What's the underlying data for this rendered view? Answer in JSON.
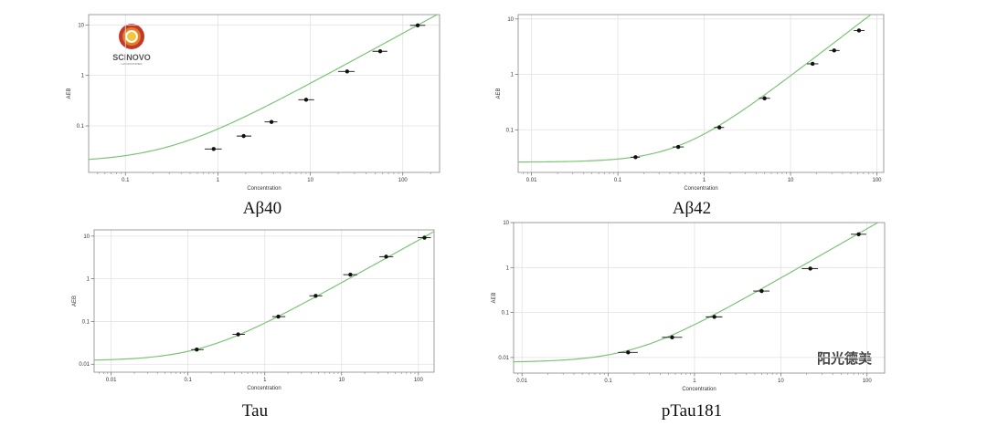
{
  "logo": {
    "text": "SCINOVO",
    "subtext": "LABORATORIES"
  },
  "watermark": "阳光德美",
  "chart_data": [
    {
      "type": "scatter",
      "caption": "Aβ40",
      "xlabel": "Concentration",
      "ylabel": "AEB",
      "xscale": "log",
      "yscale": "log",
      "xlim": [
        0.04,
        250
      ],
      "ylim": [
        0.012,
        16
      ],
      "xticks": [
        {
          "v": 0.1,
          "label": "0.1"
        },
        {
          "v": 1,
          "label": "1"
        },
        {
          "v": 10,
          "label": "10"
        },
        {
          "v": 100,
          "label": "100"
        }
      ],
      "yticks": [
        {
          "v": 0.1,
          "label": "0.1"
        },
        {
          "v": 1,
          "label": "1"
        },
        {
          "v": 10,
          "label": "10"
        }
      ],
      "grid": true,
      "curve_color": "#7cc576",
      "fit": {
        "bg": 0.019,
        "slope": 0.068,
        "power": 1.0
      },
      "points": [
        {
          "x": 0.9,
          "y": 0.035,
          "xerr": [
            0.72,
            1.1
          ]
        },
        {
          "x": 1.9,
          "y": 0.063,
          "xerr": [
            1.6,
            2.3
          ]
        },
        {
          "x": 3.8,
          "y": 0.12,
          "xerr": [
            3.2,
            4.4
          ]
        },
        {
          "x": 9,
          "y": 0.33,
          "xerr": [
            7.4,
            11
          ]
        },
        {
          "x": 25,
          "y": 1.2,
          "xerr": [
            20,
            30
          ]
        },
        {
          "x": 57,
          "y": 3.0,
          "xerr": [
            47,
            68
          ]
        },
        {
          "x": 145,
          "y": 9.8,
          "xerr": [
            120,
            175
          ]
        }
      ]
    },
    {
      "type": "scatter",
      "caption": "Aβ42",
      "xlabel": "Concentration",
      "ylabel": "AEB",
      "xscale": "log",
      "yscale": "log",
      "xlim": [
        0.007,
        120
      ],
      "ylim": [
        0.017,
        12
      ],
      "xticks": [
        {
          "v": 0.01,
          "label": "0.01"
        },
        {
          "v": 0.1,
          "label": "0.1"
        },
        {
          "v": 1,
          "label": "1"
        },
        {
          "v": 10,
          "label": "10"
        },
        {
          "v": 100,
          "label": "100"
        }
      ],
      "yticks": [
        {
          "v": 0.1,
          "label": "0.1"
        },
        {
          "v": 1,
          "label": "1"
        },
        {
          "v": 10,
          "label": "10"
        }
      ],
      "grid": true,
      "curve_color": "#7cc576",
      "fit": {
        "bg": 0.026,
        "slope": 0.058,
        "power": 1.2
      },
      "points": [
        {
          "x": 0.16,
          "y": 0.032,
          "xerr": [
            0.14,
            0.18
          ]
        },
        {
          "x": 0.5,
          "y": 0.049,
          "xerr": [
            0.43,
            0.58
          ]
        },
        {
          "x": 1.5,
          "y": 0.11,
          "xerr": [
            1.3,
            1.7
          ]
        },
        {
          "x": 5,
          "y": 0.37,
          "xerr": [
            4.3,
            5.8
          ]
        },
        {
          "x": 18,
          "y": 1.55,
          "xerr": [
            15.5,
            21
          ]
        },
        {
          "x": 32,
          "y": 2.7,
          "xerr": [
            28,
            37
          ]
        },
        {
          "x": 62,
          "y": 6.2,
          "xerr": [
            54,
            72
          ]
        }
      ]
    },
    {
      "type": "scatter",
      "caption": "Tau",
      "xlabel": "Concentration",
      "ylabel": "AEB",
      "xscale": "log",
      "yscale": "log",
      "xlim": [
        0.006,
        160
      ],
      "ylim": [
        0.0065,
        14
      ],
      "xticks": [
        {
          "v": 0.01,
          "label": "0.01"
        },
        {
          "v": 0.1,
          "label": "0.1"
        },
        {
          "v": 1,
          "label": "1"
        },
        {
          "v": 10,
          "label": "10"
        },
        {
          "v": 100,
          "label": "100"
        }
      ],
      "yticks": [
        {
          "v": 0.01,
          "label": "0.01"
        },
        {
          "v": 0.1,
          "label": "0.1"
        },
        {
          "v": 1,
          "label": "1"
        },
        {
          "v": 10,
          "label": "10"
        }
      ],
      "grid": true,
      "curve_color": "#7cc576",
      "fit": {
        "bg": 0.012,
        "slope": 0.08,
        "power": 1.0
      },
      "points": [
        {
          "x": 0.13,
          "y": 0.022,
          "xerr": [
            0.11,
            0.16
          ]
        },
        {
          "x": 0.45,
          "y": 0.05,
          "xerr": [
            0.38,
            0.55
          ]
        },
        {
          "x": 1.5,
          "y": 0.13,
          "xerr": [
            1.25,
            1.85
          ]
        },
        {
          "x": 4.6,
          "y": 0.4,
          "xerr": [
            3.8,
            5.6
          ]
        },
        {
          "x": 13,
          "y": 1.25,
          "xerr": [
            10.5,
            16
          ]
        },
        {
          "x": 38,
          "y": 3.3,
          "xerr": [
            31,
            47
          ]
        },
        {
          "x": 120,
          "y": 9.2,
          "xerr": [
            98,
            145
          ]
        }
      ]
    },
    {
      "type": "scatter",
      "caption": "pTau181",
      "xlabel": "Concentration",
      "ylabel": "AEB",
      "xscale": "log",
      "yscale": "log",
      "xlim": [
        0.008,
        160
      ],
      "ylim": [
        0.0045,
        10
      ],
      "xticks": [
        {
          "v": 0.01,
          "label": "0.01"
        },
        {
          "v": 0.1,
          "label": "0.1"
        },
        {
          "v": 1,
          "label": "1"
        },
        {
          "v": 10,
          "label": "10"
        },
        {
          "v": 100,
          "label": "100"
        }
      ],
      "yticks": [
        {
          "v": 0.01,
          "label": "0.01"
        },
        {
          "v": 0.1,
          "label": "0.1"
        },
        {
          "v": 1,
          "label": "1"
        },
        {
          "v": 10,
          "label": "10"
        }
      ],
      "grid": true,
      "curve_color": "#7cc576",
      "fit": {
        "bg": 0.0078,
        "slope": 0.046,
        "power": 1.1
      },
      "points": [
        {
          "x": 0.17,
          "y": 0.013,
          "xerr": [
            0.13,
            0.22
          ]
        },
        {
          "x": 0.55,
          "y": 0.028,
          "xerr": [
            0.42,
            0.72
          ]
        },
        {
          "x": 1.7,
          "y": 0.08,
          "xerr": [
            1.35,
            2.1
          ]
        },
        {
          "x": 6,
          "y": 0.3,
          "xerr": [
            4.8,
            7.4
          ]
        },
        {
          "x": 22,
          "y": 0.95,
          "xerr": [
            17.5,
            27
          ]
        },
        {
          "x": 80,
          "y": 5.5,
          "xerr": [
            65,
            98
          ]
        }
      ]
    }
  ]
}
